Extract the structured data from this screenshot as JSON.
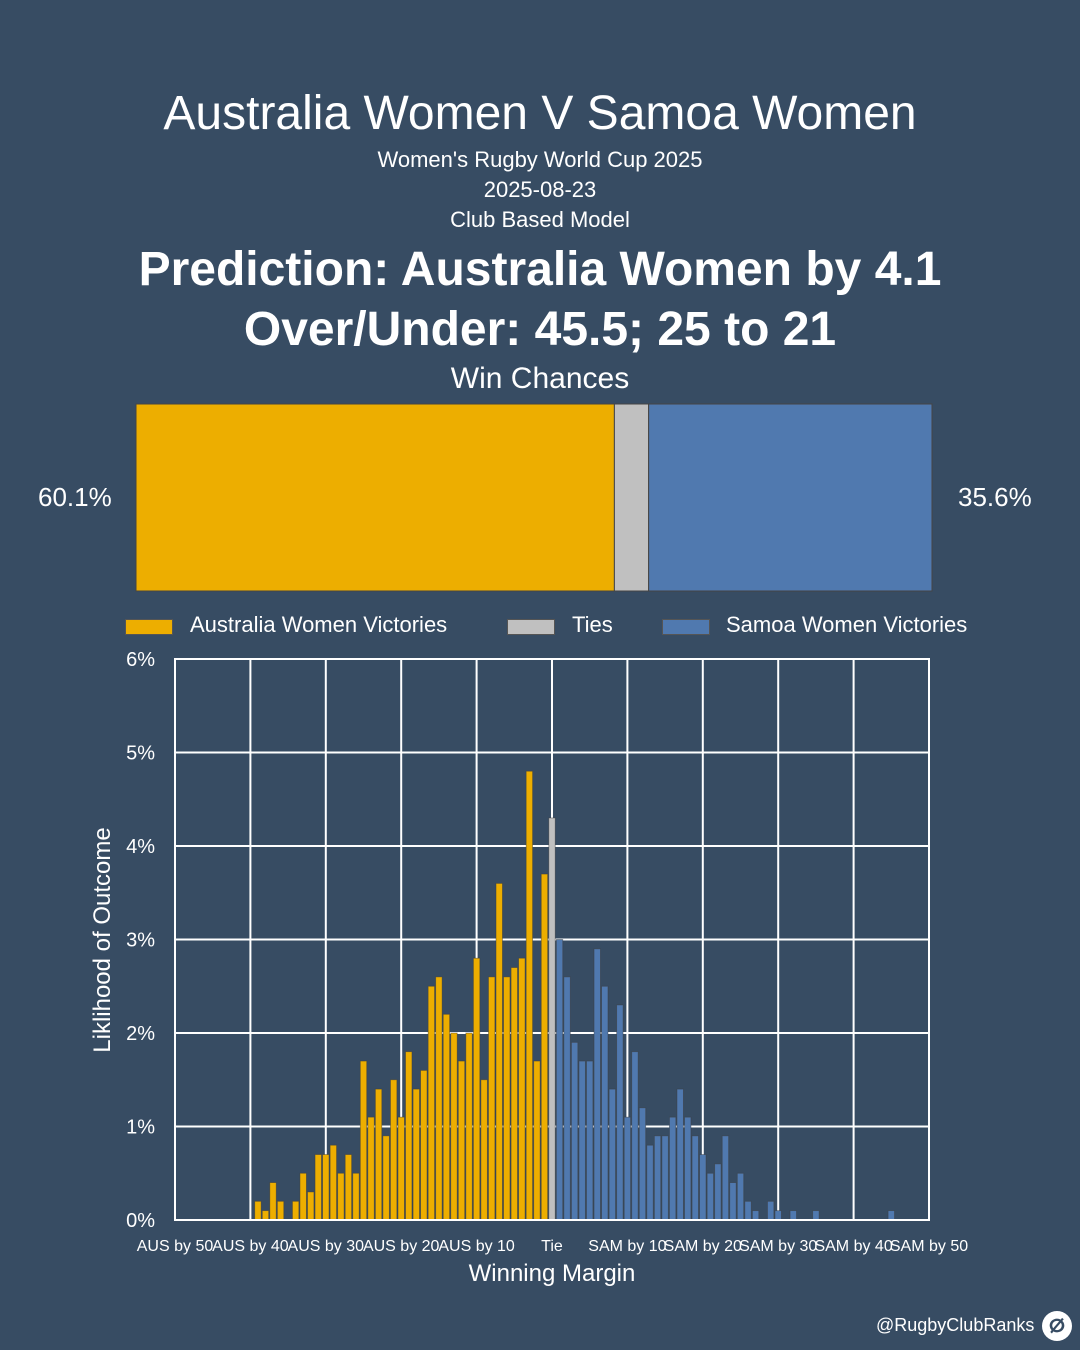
{
  "header": {
    "title": "Australia Women V Samoa Women",
    "competition": "Women's Rugby World Cup 2025",
    "date": "2025-08-23",
    "model": "Club Based Model",
    "prediction": "Prediction: Australia Women by 4.1",
    "over_under": "Over/Under: 45.5; 25 to 21"
  },
  "win_chances": {
    "label": "Win Chances",
    "home_pct": 60.1,
    "tie_pct": 4.3,
    "away_pct": 35.6,
    "home_label": "60.1%",
    "away_label": "35.6%",
    "colors": {
      "home": "#edae00",
      "tie": "#c0c0c0",
      "away": "#5079af"
    }
  },
  "legend": {
    "home": "Australia Women Victories",
    "tie": "Ties",
    "away": "Samoa Women Victories"
  },
  "chart_data": {
    "type": "bar",
    "xlabel": "Winning Margin",
    "ylabel": "Liklihood of Outcome",
    "xlim": [
      -50,
      50
    ],
    "ylim": [
      0,
      6
    ],
    "y_ticks": [
      "0%",
      "1%",
      "2%",
      "3%",
      "4%",
      "5%",
      "6%"
    ],
    "x_ticks": [
      "AUS by 50",
      "AUS by 40",
      "AUS by 30",
      "AUS by 20",
      "AUS by 10",
      "Tie",
      "SAM by 10",
      "SAM by 20",
      "SAM by 30",
      "SAM by 40",
      "SAM by 50"
    ],
    "grid": true,
    "series": [
      {
        "name": "Australia Women Victories",
        "color": "#edae00",
        "x": [
          -39,
          -38,
          -37,
          -36,
          -34,
          -33,
          -32,
          -31,
          -30,
          -29,
          -28,
          -27,
          -26,
          -25,
          -24,
          -23,
          -22,
          -21,
          -20,
          -19,
          -18,
          -17,
          -16,
          -15,
          -14,
          -13,
          -12,
          -11,
          -10,
          -9,
          -8,
          -7,
          -6,
          -5,
          -4,
          -3,
          -2,
          -1
        ],
        "values": [
          0.2,
          0.1,
          0.4,
          0.2,
          0.2,
          0.5,
          0.3,
          0.7,
          0.7,
          0.8,
          0.5,
          0.7,
          0.5,
          1.7,
          1.1,
          1.4,
          0.9,
          1.5,
          1.1,
          1.8,
          1.4,
          1.6,
          2.5,
          2.6,
          2.2,
          2.0,
          1.7,
          2.0,
          2.8,
          1.5,
          2.6,
          3.6,
          2.6,
          2.7,
          2.8,
          4.8,
          1.7,
          3.7
        ]
      },
      {
        "name": "Ties",
        "color": "#c0c0c0",
        "x": [
          0
        ],
        "values": [
          4.3
        ]
      },
      {
        "name": "Samoa Women Victories",
        "color": "#5079af",
        "x": [
          1,
          2,
          3,
          4,
          5,
          6,
          7,
          8,
          9,
          10,
          11,
          12,
          13,
          14,
          15,
          16,
          17,
          18,
          19,
          20,
          21,
          22,
          23,
          24,
          25,
          26,
          27,
          29,
          30,
          32,
          35,
          45
        ],
        "values": [
          3.0,
          2.6,
          1.9,
          1.7,
          1.7,
          2.9,
          2.5,
          1.4,
          2.3,
          1.1,
          1.8,
          1.2,
          0.8,
          0.9,
          0.9,
          1.1,
          1.4,
          1.1,
          0.9,
          0.7,
          0.5,
          0.6,
          0.9,
          0.4,
          0.5,
          0.2,
          0.1,
          0.2,
          0.1,
          0.1,
          0.1,
          0.1
        ]
      }
    ]
  },
  "footer": {
    "credit": "@RugbyClubRanks",
    "logo": "ⵁ"
  }
}
